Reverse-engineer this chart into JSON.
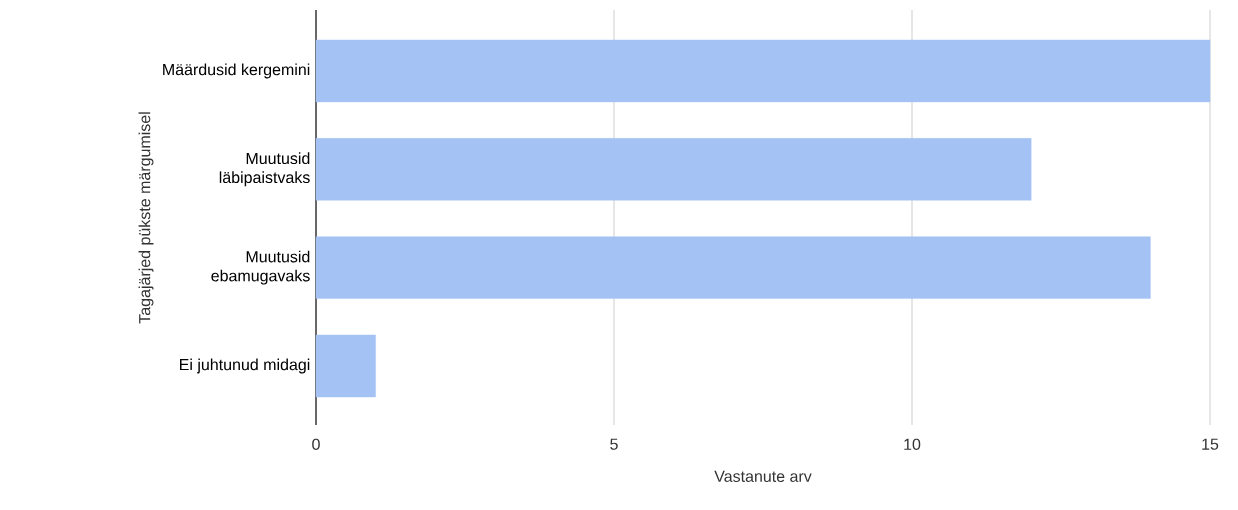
{
  "chart_data": {
    "type": "bar",
    "orientation": "horizontal",
    "xlabel": "Vastanute arv",
    "ylabel": "Tagajärjed pükste märgumisel",
    "categories": [
      "Määrdusid kergemini",
      "Muutusid läbipaistvaks",
      "Muutusid ebamugavaks",
      "Ei juhtunud midagi"
    ],
    "values": [
      15,
      12,
      14,
      1
    ],
    "color": "#a4c2f4",
    "xlim": [
      0,
      15
    ],
    "xticks": [
      0,
      5,
      10,
      15
    ],
    "grid": "x"
  }
}
